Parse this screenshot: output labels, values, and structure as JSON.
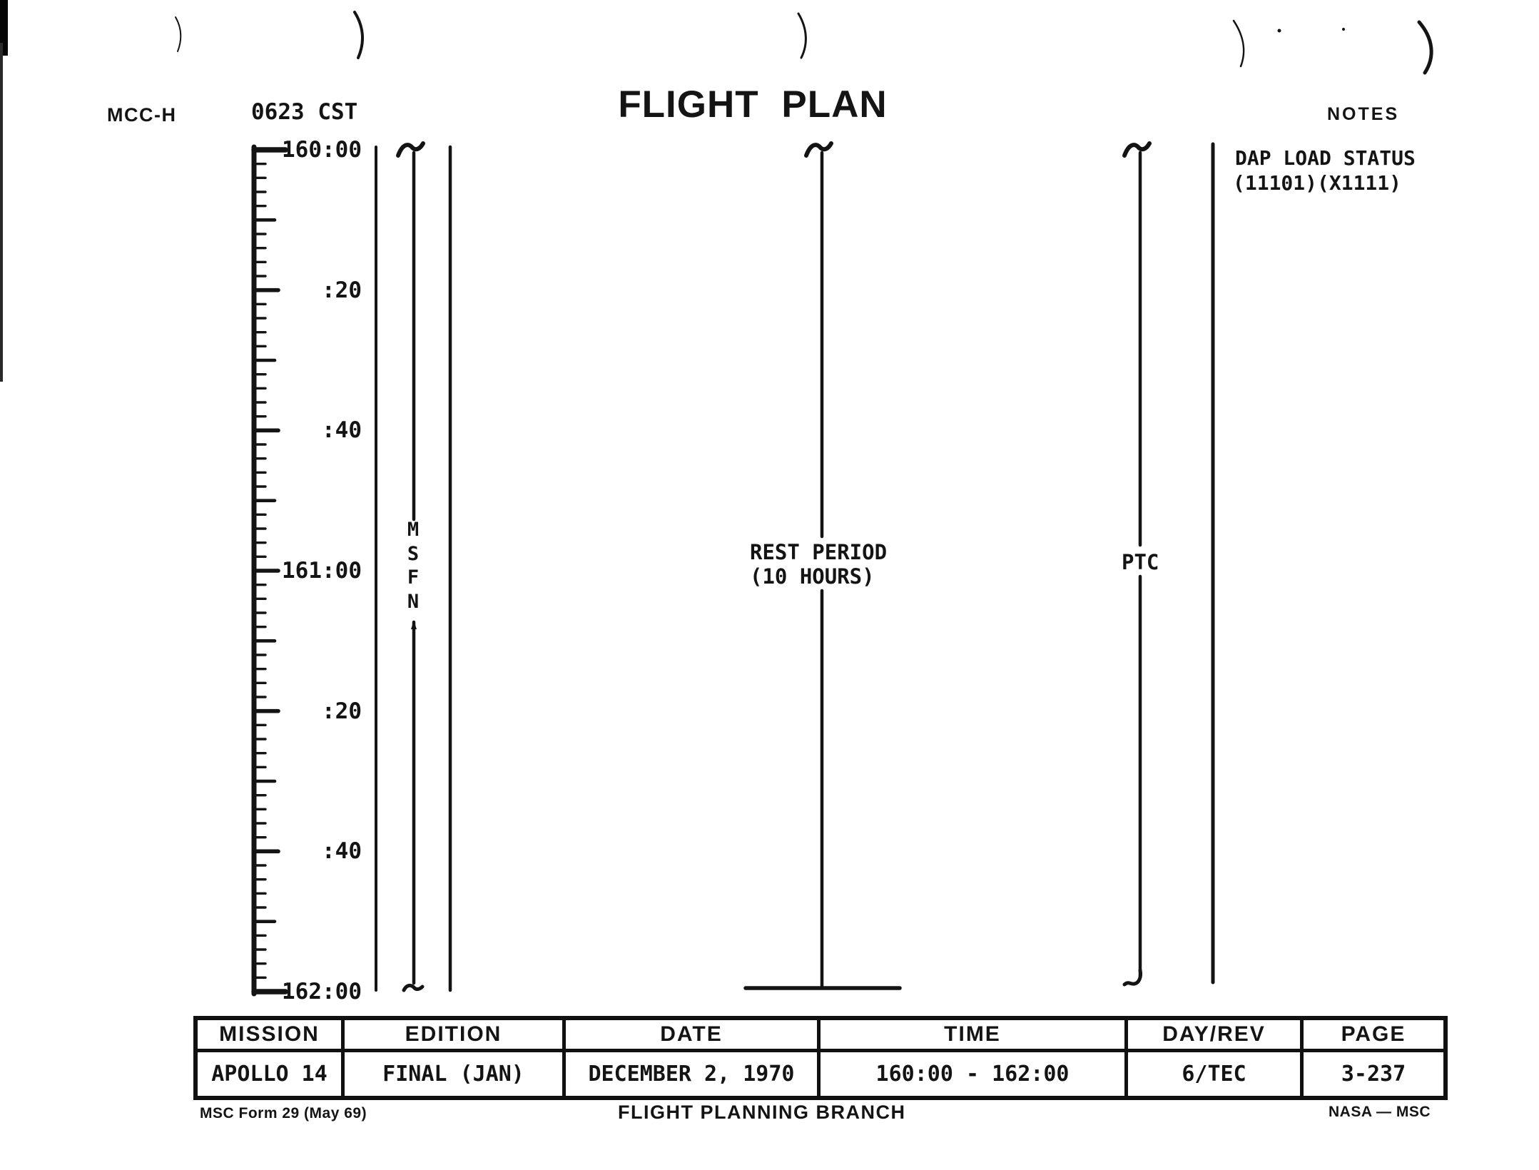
{
  "page": {
    "station": "MCC-H",
    "cst_time": "0623 CST",
    "title": "FLIGHT PLAN",
    "notes_header": "NOTES"
  },
  "notes": {
    "dap_line1": "DAP LOAD STATUS",
    "dap_line2": "(11101)(X1111)"
  },
  "timeline": {
    "start": "160:00",
    "end": "162:00",
    "tick_interval_minutes": 2,
    "labels": [
      {
        "text": "160:00",
        "minutes": 0
      },
      {
        "text": ":20",
        "minutes": 20
      },
      {
        "text": ":40",
        "minutes": 40
      },
      {
        "text": "161:00",
        "minutes": 60
      },
      {
        "text": ":20",
        "minutes": 80
      },
      {
        "text": ":40",
        "minutes": 100
      },
      {
        "text": "162:00",
        "minutes": 120
      }
    ],
    "msfn_letters": [
      "M",
      "S",
      "F",
      "N"
    ],
    "rest_period_line1": "REST PERIOD",
    "rest_period_line2": "(10 HOURS)",
    "ptc_label": "PTC"
  },
  "table": {
    "headers": [
      "MISSION",
      "EDITION",
      "DATE",
      "TIME",
      "DAY/REV",
      "PAGE"
    ],
    "values": [
      "APOLLO 14",
      "FINAL (JAN)",
      "DECEMBER 2, 1970",
      "160:00 - 162:00",
      "6/TEC",
      "3-237"
    ]
  },
  "footer": {
    "form": "MSC Form 29 (May 69)",
    "branch": "FLIGHT PLANNING BRANCH",
    "org": "NASA — MSC"
  },
  "colors": {
    "ink": "#141414",
    "paper": "#ffffff"
  }
}
